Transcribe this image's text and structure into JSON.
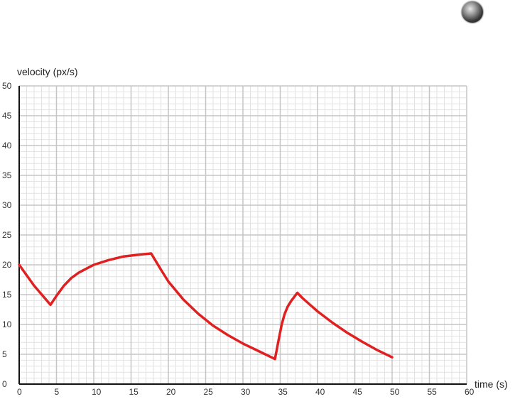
{
  "chart_data": {
    "type": "line",
    "xlabel": "time (s)",
    "ylabel": "velocity (px/s)",
    "xlim": [
      0,
      60
    ],
    "ylim": [
      0,
      50
    ],
    "x_ticks": [
      0,
      5,
      10,
      15,
      20,
      25,
      30,
      35,
      40,
      45,
      50,
      55,
      60
    ],
    "y_ticks": [
      0,
      5,
      10,
      15,
      20,
      25,
      30,
      35,
      40,
      45,
      50
    ],
    "grid": true,
    "series": [
      {
        "color": "#e02020",
        "x": [
          0,
          2,
          4.2,
          5,
          6,
          7,
          8,
          10,
          12,
          14,
          16,
          17.7,
          19,
          20,
          22,
          24,
          26,
          28,
          30,
          32,
          34.3,
          34.8,
          35.2,
          35.6,
          36,
          36.5,
          37.3,
          38,
          39,
          40,
          42,
          44,
          46,
          48,
          50
        ],
        "y": [
          20,
          16.5,
          13.3,
          14.8,
          16.5,
          17.8,
          18.7,
          20,
          20.8,
          21.4,
          21.7,
          21.9,
          19.2,
          17.2,
          14.2,
          11.8,
          9.8,
          8.2,
          6.8,
          5.6,
          4.2,
          7.5,
          10,
          11.8,
          13,
          14,
          15.3,
          14.4,
          13.3,
          12.2,
          10.3,
          8.6,
          7.1,
          5.7,
          4.5
        ]
      }
    ]
  },
  "indicator": {
    "icon": "ball-icon"
  }
}
